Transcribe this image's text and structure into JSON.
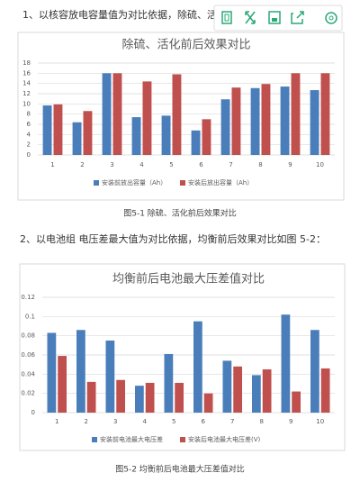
{
  "document": {
    "paragraphs": [
      "1、以核容放电容量值为对比依据，除硫、活",
      "2、以电池组 电压差最大值为对比依据，均衡前后效果对比如图 5-2："
    ],
    "captions": [
      "图5-1  除硫、活化前后效果对比",
      "图5-2  均衡前后电池最大压差值对比"
    ]
  },
  "chart_data": [
    {
      "type": "bar",
      "title": "除硫、活化前后效果对比",
      "categories": [
        "1",
        "2",
        "3",
        "4",
        "5",
        "6",
        "7",
        "8",
        "9",
        "10"
      ],
      "series": [
        {
          "name": "安装前放出容量（Ah）",
          "color": "#4a7ebb",
          "values": [
            9.7,
            6.4,
            16,
            7.4,
            7.7,
            4.8,
            10.9,
            13.1,
            13.4,
            12.7
          ]
        },
        {
          "name": "安装后放出容量（Ah）",
          "color": "#c0504d",
          "values": [
            9.9,
            8.6,
            16,
            14.4,
            15.8,
            7.0,
            13.2,
            13.9,
            16,
            16
          ]
        }
      ],
      "ylim": [
        0,
        18
      ],
      "yticks": [
        0,
        2,
        4,
        6,
        8,
        10,
        12,
        14,
        16,
        18
      ],
      "grid": true,
      "legend": "bottom"
    },
    {
      "type": "bar",
      "title": "均衡前后电池最大压差值对比",
      "categories": [
        "1",
        "2",
        "3",
        "4",
        "5",
        "6",
        "7",
        "8",
        "9",
        "10"
      ],
      "series": [
        {
          "name": "安装前电池最大电压差",
          "color": "#4a7ebb",
          "values": [
            0.083,
            0.086,
            0.075,
            0.028,
            0.061,
            0.095,
            0.054,
            0.039,
            0.102,
            0.086
          ]
        },
        {
          "name": "安装后电池最大电压差(V)",
          "color": "#c0504d",
          "values": [
            0.059,
            0.032,
            0.034,
            0.031,
            0.031,
            0.02,
            0.048,
            0.045,
            0.022,
            0.046
          ]
        }
      ],
      "ylim": [
        0,
        0.12
      ],
      "yticks": [
        0,
        0.02,
        0.04,
        0.06,
        0.08,
        0.1,
        0.12
      ],
      "grid": true,
      "legend": "bottom"
    }
  ]
}
